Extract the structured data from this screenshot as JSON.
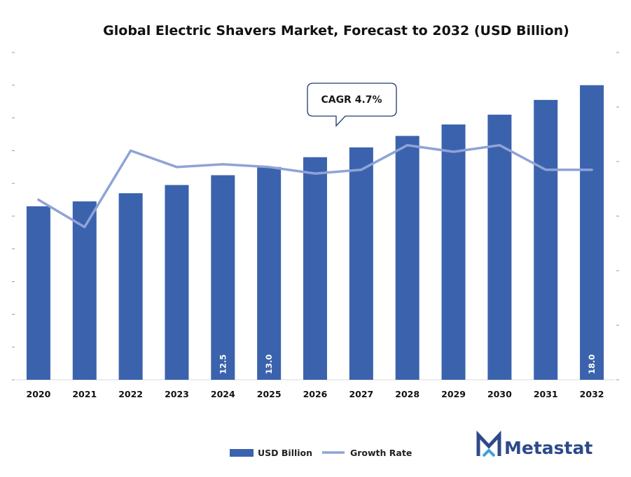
{
  "chart_data": {
    "type": "bar",
    "title": "Global Electric Shavers Market, Forecast to 2032 (USD Billion)",
    "categories": [
      "2020",
      "2021",
      "2022",
      "2023",
      "2024",
      "2025",
      "2026",
      "2027",
      "2028",
      "2029",
      "2030",
      "2031",
      "2032"
    ],
    "series": [
      {
        "name": "USD Billion",
        "type": "bar",
        "color": "#3b62ad",
        "values": [
          10.6,
          10.9,
          11.4,
          11.9,
          12.5,
          13.0,
          13.6,
          14.2,
          14.9,
          15.6,
          16.2,
          17.1,
          18.0
        ]
      },
      {
        "name": "Growth Rate",
        "type": "line",
        "color": "#8fa3d6",
        "values": [
          3.3,
          2.8,
          4.2,
          3.9,
          3.95,
          3.9,
          3.78,
          3.85,
          4.3,
          4.18,
          4.3,
          3.85,
          3.85
        ]
      }
    ],
    "data_labels": [
      {
        "category": "2024",
        "text": "12.5"
      },
      {
        "category": "2025",
        "text": "13.0"
      },
      {
        "category": "2032",
        "text": "18.0"
      }
    ],
    "ylim": [
      0,
      20
    ],
    "ylim_right": [
      0,
      6
    ],
    "annotation": "CAGR 4.7%",
    "legend": {
      "position": "bottom-center"
    },
    "grid": false
  },
  "brand": {
    "name": "Metastat",
    "logo_icon": "m-logo-icon"
  }
}
